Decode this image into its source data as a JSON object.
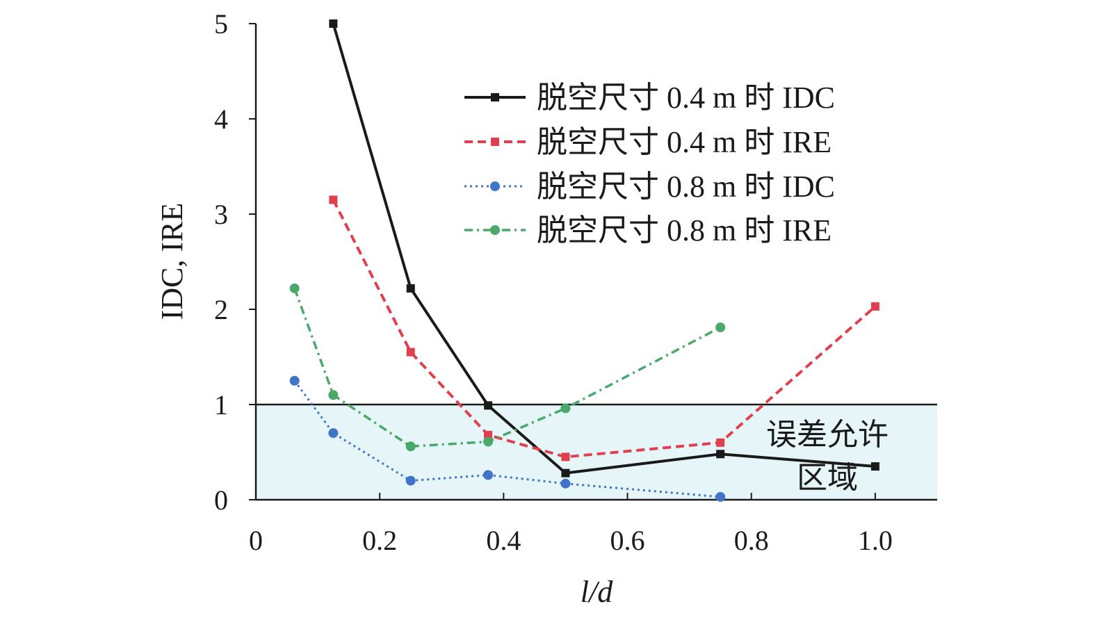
{
  "chart_data": {
    "type": "line",
    "title": "",
    "xlabel": "l/d",
    "ylabel": "IDC, IRE",
    "xlim": [
      0,
      1.1
    ],
    "ylim": [
      0,
      5
    ],
    "xticks": [
      0,
      0.2,
      0.4,
      0.6,
      0.8,
      1.0
    ],
    "xtick_labels": [
      "0",
      "0.2",
      "0.4",
      "0.6",
      "0.8",
      "1.0"
    ],
    "yticks": [
      0,
      1,
      2,
      3,
      4,
      5
    ],
    "ytick_labels": [
      "0",
      "1",
      "2",
      "3",
      "4",
      "5"
    ],
    "legend_position": "top-right",
    "threshold": 1,
    "region_label_line1": "误差允许",
    "region_label_line2": "区域",
    "region_color": "#e6f5f7",
    "series": [
      {
        "name": "脱空尺寸 0.4 m 时 IDC",
        "color": "#1a1a1a",
        "marker": "square",
        "dash": "solid",
        "x": [
          0.125,
          0.25,
          0.375,
          0.5,
          0.75,
          1.0
        ],
        "y": [
          5.0,
          2.22,
          0.99,
          0.28,
          0.48,
          0.35
        ]
      },
      {
        "name": "脱空尺寸 0.4 m 时 IRE",
        "color": "#e0404e",
        "marker": "square",
        "dash": "dash",
        "x": [
          0.125,
          0.25,
          0.375,
          0.5,
          0.75,
          1.0
        ],
        "y": [
          3.15,
          1.55,
          0.68,
          0.45,
          0.6,
          2.03
        ]
      },
      {
        "name": "脱空尺寸 0.8 m 时 IDC",
        "color": "#3f74c8",
        "marker": "circle",
        "dash": "dot",
        "x": [
          0.0625,
          0.125,
          0.25,
          0.375,
          0.5,
          0.75
        ],
        "y": [
          1.25,
          0.7,
          0.2,
          0.26,
          0.17,
          0.03
        ]
      },
      {
        "name": "脱空尺寸 0.8 m 时 IRE",
        "color": "#4aa86a",
        "marker": "circle",
        "dash": "dashdot",
        "x": [
          0.0625,
          0.125,
          0.25,
          0.375,
          0.5,
          0.75
        ],
        "y": [
          2.22,
          1.1,
          0.56,
          0.61,
          0.96,
          1.81
        ]
      }
    ]
  }
}
